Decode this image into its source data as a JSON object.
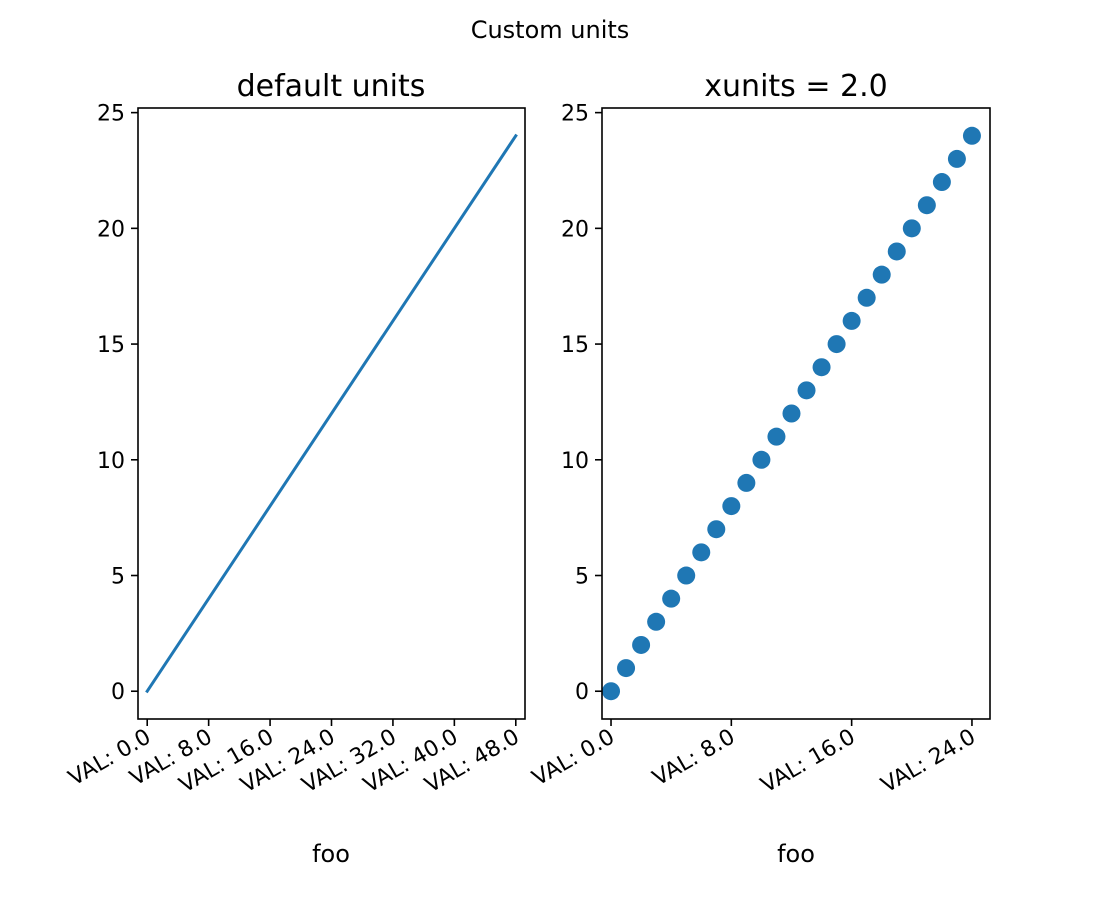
{
  "figure": {
    "suptitle": "Custom units"
  },
  "chart_data": [
    {
      "type": "line",
      "title": "default units",
      "xlabel": "foo",
      "ylabel": "",
      "grid": false,
      "color": "#1f77b4",
      "xlim": [
        -1.2,
        49.2
      ],
      "ylim": [
        -1.2,
        25.2
      ],
      "xticks": [
        0,
        8,
        16,
        24,
        32,
        40,
        48
      ],
      "xtick_labels": [
        "VAL: 0.0",
        "VAL: 8.0",
        "VAL: 16.0",
        "VAL: 24.0",
        "VAL: 32.0",
        "VAL: 40.0",
        "VAL: 48.0"
      ],
      "yticks": [
        0,
        5,
        10,
        15,
        20,
        25
      ],
      "ytick_labels": [
        "0",
        "5",
        "10",
        "15",
        "20",
        "25"
      ],
      "x": [
        0,
        48
      ],
      "y": [
        0,
        24
      ]
    },
    {
      "type": "scatter",
      "title": "xunits = 2.0",
      "xlabel": "foo",
      "ylabel": "",
      "grid": false,
      "color": "#1f77b4",
      "xlim": [
        -0.6,
        25.2
      ],
      "ylim": [
        -1.2,
        25.2
      ],
      "xticks": [
        0,
        8,
        16,
        24
      ],
      "xtick_labels": [
        "VAL: 0.0",
        "VAL: 8.0",
        "VAL: 16.0",
        "VAL: 24.0"
      ],
      "yticks": [
        0,
        5,
        10,
        15,
        20,
        25
      ],
      "ytick_labels": [
        "0",
        "5",
        "10",
        "15",
        "20",
        "25"
      ],
      "x": [
        0,
        1,
        2,
        3,
        4,
        5,
        6,
        7,
        8,
        9,
        10,
        11,
        12,
        13,
        14,
        15,
        16,
        17,
        18,
        19,
        20,
        21,
        22,
        23,
        24
      ],
      "y": [
        0,
        1,
        2,
        3,
        4,
        5,
        6,
        7,
        8,
        9,
        10,
        11,
        12,
        13,
        14,
        15,
        16,
        17,
        18,
        19,
        20,
        21,
        22,
        23,
        24
      ]
    }
  ]
}
